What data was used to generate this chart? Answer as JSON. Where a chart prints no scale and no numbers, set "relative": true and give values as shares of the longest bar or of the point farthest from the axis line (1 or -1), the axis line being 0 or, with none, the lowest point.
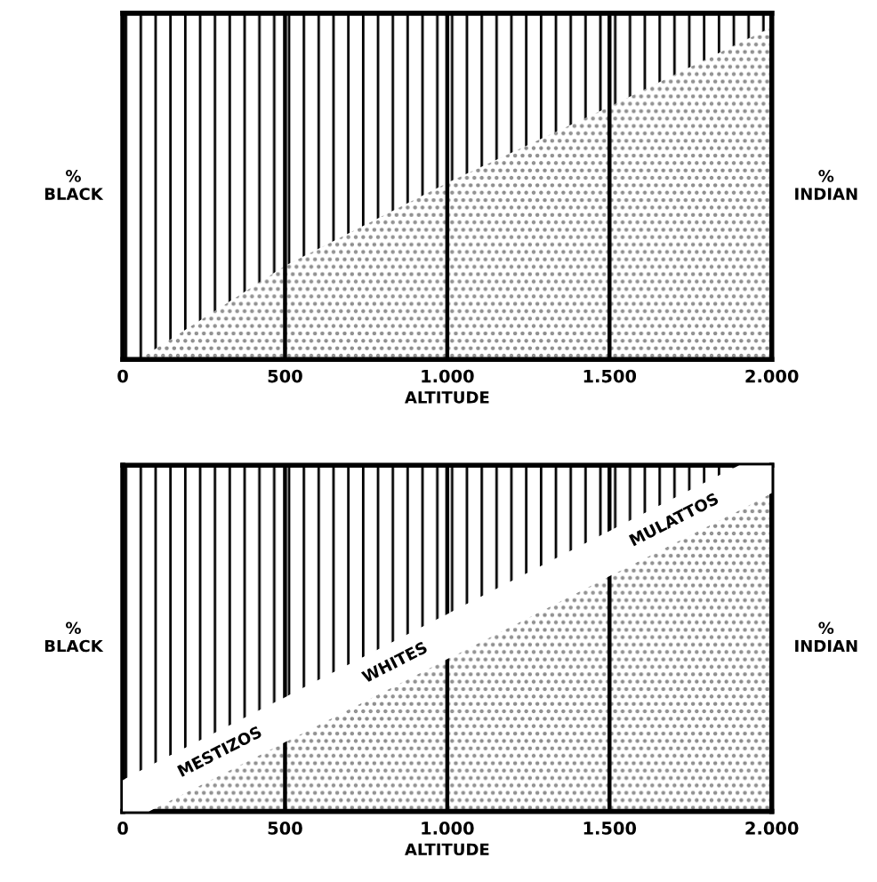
{
  "chart_data": [
    {
      "type": "area",
      "stacked": true,
      "relative": true,
      "xlabel": "ALTITUDE",
      "ylabel": "%\nBLACK",
      "y2label": "%\nINDIAN",
      "x": [
        0,
        50,
        500,
        1000,
        1500,
        2000
      ],
      "series": [
        {
          "color": "#8a8a8a",
          "values": [
            0,
            0,
            0.27,
            0.51,
            0.73,
            0.96
          ]
        },
        {
          "color": "#000000",
          "values": [
            1,
            1,
            0.73,
            0.49,
            0.27,
            0.04
          ]
        }
      ],
      "xlim": [
        0,
        2000
      ],
      "xticks": [
        0,
        500,
        {
          "value": 1000,
          "label": "1.000"
        },
        {
          "value": 1500,
          "label": "1.500"
        },
        {
          "value": 2000,
          "label": "2.000"
        }
      ],
      "grid": "x"
    },
    {
      "type": "area",
      "stacked": true,
      "relative": true,
      "xlabel": "ALTITUDE",
      "ylabel": "%\nBLACK",
      "y2label": "%\nINDIAN",
      "x": [
        0,
        80,
        500,
        1000,
        1500,
        1900,
        2000
      ],
      "series": [
        {
          "color": "#8a8a8a",
          "values": [
            0,
            0,
            0.2,
            0.44,
            0.68,
            0.87,
            0.92
          ]
        },
        {
          "color": "#ffffff",
          "values": [
            0.09,
            0.13,
            0.13,
            0.13,
            0.13,
            0.13,
            0.08
          ]
        },
        {
          "color": "#000000",
          "values": [
            0.91,
            0.87,
            0.67,
            0.43,
            0.19,
            0,
            0
          ]
        }
      ],
      "annotations": [
        "MESTIZOS",
        "WHITES",
        "MULATTOS"
      ],
      "xlim": [
        0,
        2000
      ],
      "xticks": [
        0,
        500,
        {
          "value": 1000,
          "label": "1.000"
        },
        {
          "value": 1500,
          "label": "1.500"
        },
        {
          "value": 2000,
          "label": "2.000"
        }
      ],
      "grid": "x"
    }
  ]
}
